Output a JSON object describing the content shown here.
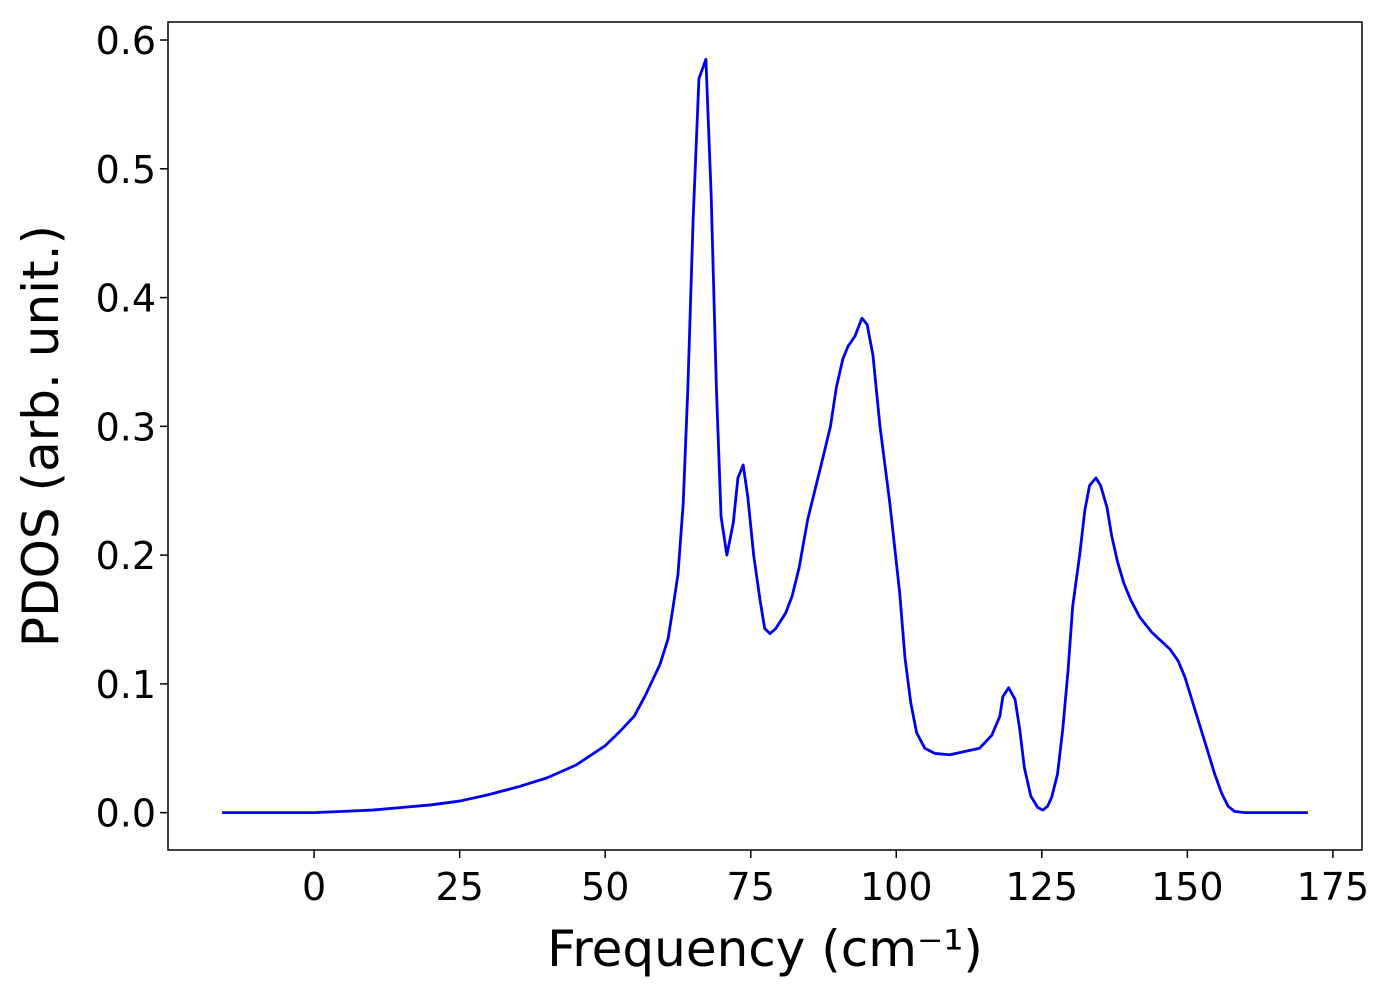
{
  "chart_data": {
    "type": "line",
    "xlabel": "Frequency (cm⁻¹)",
    "ylabel": "PDOS (arb. unit.)",
    "xlim": [
      -25.1,
      180
    ],
    "ylim": [
      -0.029,
      0.614
    ],
    "xticks": [
      0,
      25,
      50,
      75,
      100,
      125,
      150,
      175
    ],
    "yticks": [
      {
        "value": 0,
        "label": "0.0"
      },
      0.1,
      0.2,
      0.3,
      0.4,
      0.5,
      0.6
    ],
    "series": [
      {
        "color": "#0000ee",
        "x": [
          -15.8,
          -5,
          0,
          5,
          10,
          15,
          20,
          25,
          30,
          35,
          40,
          45,
          50,
          52.5,
          55,
          57,
          59.4,
          60.8,
          61.5,
          62.5,
          63.4,
          64.2,
          65.1,
          66.1,
          67.3,
          68.2,
          69.1,
          69.9,
          70.9,
          72,
          72.8,
          73.7,
          74.5,
          75.5,
          76.6,
          77.4,
          78.3,
          79.3,
          81,
          82.1,
          83.3,
          84.8,
          86,
          87.2,
          88.7,
          89.7,
          90.8,
          91.7,
          92.9,
          94.1,
          95,
          96,
          97.2,
          98.9,
          100.6,
          101.5,
          102.5,
          103.5,
          104.9,
          106.6,
          109.2,
          114.3,
          116.4,
          117.8,
          118.3,
          119.3,
          120.4,
          121.2,
          122,
          123.1,
          124.3,
          125.2,
          126,
          126.7,
          127.7,
          128.6,
          129.5,
          130.3,
          131.5,
          132.4,
          133.2,
          134.3,
          135.1,
          136.2,
          137,
          138,
          139.1,
          140.3,
          141.8,
          143.9,
          147,
          148.4,
          149.6,
          151.3,
          153,
          154.7,
          155.9,
          157,
          158.1,
          159.9,
          170.7
        ],
        "values": [
          0,
          0,
          0,
          0.001,
          0.002,
          0.004,
          0.006,
          0.009,
          0.014,
          0.02,
          0.027,
          0.037,
          0.052,
          0.063,
          0.075,
          0.092,
          0.115,
          0.135,
          0.155,
          0.185,
          0.24,
          0.33,
          0.46,
          0.57,
          0.585,
          0.48,
          0.33,
          0.23,
          0.2,
          0.225,
          0.26,
          0.27,
          0.245,
          0.2,
          0.165,
          0.143,
          0.139,
          0.143,
          0.155,
          0.168,
          0.19,
          0.228,
          0.25,
          0.272,
          0.3,
          0.33,
          0.352,
          0.362,
          0.37,
          0.384,
          0.379,
          0.355,
          0.3,
          0.24,
          0.17,
          0.12,
          0.085,
          0.062,
          0.05,
          0.046,
          0.045,
          0.05,
          0.06,
          0.075,
          0.09,
          0.097,
          0.088,
          0.065,
          0.035,
          0.013,
          0.004,
          0.002,
          0.005,
          0.012,
          0.03,
          0.065,
          0.11,
          0.16,
          0.2,
          0.235,
          0.254,
          0.26,
          0.254,
          0.237,
          0.215,
          0.195,
          0.178,
          0.165,
          0.152,
          0.14,
          0.127,
          0.118,
          0.105,
          0.08,
          0.055,
          0.03,
          0.015,
          0.005,
          0.001,
          0,
          0
        ]
      }
    ]
  }
}
